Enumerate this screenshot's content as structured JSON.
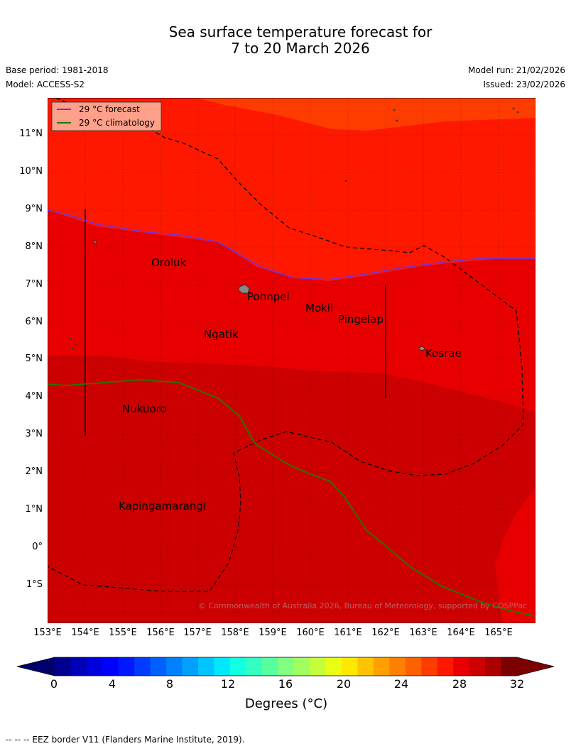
{
  "title": {
    "line1": "Sea surface temperature forecast for",
    "line2": "7 to 20 March 2026"
  },
  "meta": {
    "base_period": "Base period: 1981-2018",
    "model": "Model: ACCESS-S2",
    "model_run": "Model run: 21/02/2026",
    "issued": "Issued: 23/02/2026"
  },
  "legend": {
    "forecast": "29 °C  forecast",
    "climatology": "29 °C  climatology"
  },
  "lat_labels": [
    "11°N",
    "10°N",
    "9°N",
    "8°N",
    "7°N",
    "6°N",
    "5°N",
    "4°N",
    "3°N",
    "2°N",
    "1°N",
    "0°",
    "1°S"
  ],
  "lon_labels": [
    "153°E",
    "154°E",
    "155°E",
    "156°E",
    "157°E",
    "158°E",
    "159°E",
    "160°E",
    "161°E",
    "162°E",
    "163°E",
    "164°E",
    "165°E"
  ],
  "places": {
    "oroluk": "Oroluk",
    "pohnpei": "Pohnpei",
    "mokil": "Mokil",
    "pingelap": "Pingelap",
    "ngatik": "Ngatik",
    "kosrae": "Kosrae",
    "nukuoro": "Nukuoro",
    "kapingamarangi": "Kapingamarangi"
  },
  "copyright": "© Commonwealth of Australia 2026, Bureau of Meteorology, supported by COSPPac",
  "colorbar": {
    "ticks": [
      "0",
      "4",
      "8",
      "12",
      "16",
      "20",
      "24",
      "28",
      "32"
    ],
    "label": "Degrees (°C)",
    "colors": [
      "#00008f",
      "#0000b8",
      "#0000dd",
      "#0000ff",
      "#0018ff",
      "#003cff",
      "#0060ff",
      "#0080ff",
      "#00a0ff",
      "#00c4ff",
      "#00e8ff",
      "#14ffe2",
      "#34ffc0",
      "#58ff9e",
      "#80ff80",
      "#a0ff5e",
      "#c4ff3a",
      "#e8ff14",
      "#ffe800",
      "#ffc400",
      "#ffa000",
      "#ff8000",
      "#ff6000",
      "#ff3c00",
      "#ff1800",
      "#e80000",
      "#cc0000",
      "#aa0000",
      "#7c0000"
    ],
    "under_color": "#00006a",
    "over_color": "#7c0000"
  },
  "footer": "--  --  -- EEZ border V11 (Flanders Marine Institute, 2019).",
  "colors": {
    "forecast_line": "#7a2fd0",
    "climatology_line": "#1f7a00"
  }
}
